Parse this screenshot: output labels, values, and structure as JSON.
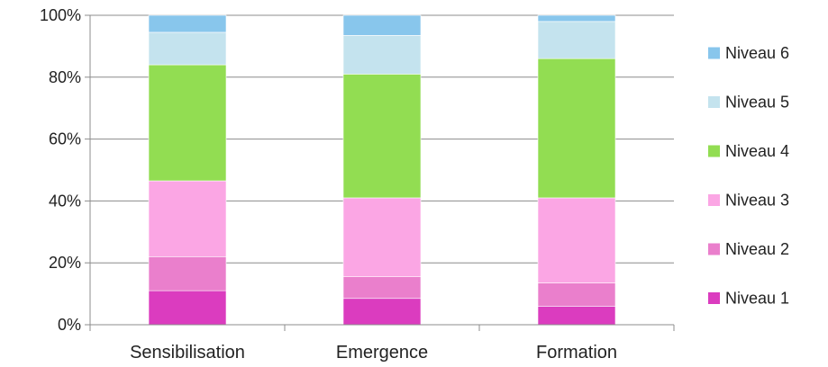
{
  "chart_data": {
    "type": "bar",
    "stacked": true,
    "percent_stacked": true,
    "categories": [
      "Sensibilisation",
      "Emergence",
      "Formation"
    ],
    "series": [
      {
        "name": "Niveau 1",
        "color": "#db3cbf",
        "values": [
          11,
          8.5,
          6
        ]
      },
      {
        "name": "Niveau 2",
        "color": "#ea7fcc",
        "values": [
          11,
          7,
          7.5
        ]
      },
      {
        "name": "Niveau 3",
        "color": "#fba6e4",
        "values": [
          24.5,
          25.5,
          27.5
        ]
      },
      {
        "name": "Niveau 4",
        "color": "#92dd52",
        "values": [
          37.5,
          40,
          45
        ]
      },
      {
        "name": "Niveau 5",
        "color": "#c4e3ee",
        "values": [
          10.5,
          12.5,
          12
        ]
      },
      {
        "name": "Niveau 6",
        "color": "#88c6ec",
        "values": [
          5.5,
          6.5,
          2
        ]
      }
    ],
    "ylim": [
      0,
      100
    ],
    "yticks": [
      "0%",
      "20%",
      "40%",
      "60%",
      "80%",
      "100%"
    ],
    "grid": true,
    "legend": "right",
    "legend_order": [
      "Niveau 6",
      "Niveau 5",
      "Niveau 4",
      "Niveau 3",
      "Niveau 2",
      "Niveau 1"
    ],
    "title": "",
    "xlabel": "",
    "ylabel": ""
  }
}
